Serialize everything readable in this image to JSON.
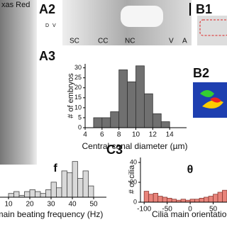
{
  "labels": {
    "texas": "xas Red",
    "a2": "A2",
    "b1": "B1",
    "a3": "A3",
    "b2": "B2",
    "c3": "C3",
    "a2_regions": [
      "SC",
      "CC",
      "NC",
      "V",
      "A"
    ],
    "a2_axis": [
      "D",
      "V"
    ]
  },
  "chart_data": [
    {
      "type": "histogram",
      "ylabel": "# of embryos",
      "xlabel": "Central canal diameter (µm)",
      "bins": [
        5,
        6,
        7,
        8,
        9,
        10,
        11,
        12,
        13,
        14
      ],
      "values": [
        5,
        5,
        8,
        29,
        23,
        31,
        17,
        7,
        3
      ],
      "color": "#707070",
      "xlim": [
        4,
        16
      ],
      "ylim": [
        0,
        32
      ],
      "xticks": [
        4,
        6,
        8,
        10,
        12,
        14
      ],
      "yticks": [
        0,
        5,
        10,
        15,
        20,
        25,
        30
      ]
    },
    {
      "type": "histogram",
      "title": "f",
      "xlabel": "main beating frequency (Hz)",
      "bins": [
        10,
        12.5,
        15,
        17.5,
        20,
        22.5,
        25,
        27.5,
        30,
        32.5,
        35,
        37.5,
        40,
        42.5,
        45,
        47.5,
        50
      ],
      "values": [
        2,
        3,
        1,
        3,
        4,
        3,
        2,
        4,
        8,
        5,
        14,
        13,
        19,
        10,
        14,
        6
      ],
      "color": "#d9d9d9",
      "xlim": [
        6,
        56
      ],
      "ylim": [
        0,
        20
      ],
      "xticks": [
        10,
        20,
        30,
        40,
        50
      ]
    },
    {
      "type": "histogram",
      "title": "θ",
      "ylabel": "# of cilia",
      "xlabel": "Cilia main orientation (°",
      "bins": [
        -100,
        -90,
        -80,
        -70,
        -60,
        -50,
        -40,
        -30,
        -20,
        -10,
        0,
        10,
        20,
        30,
        40,
        50,
        60,
        70,
        80
      ],
      "values": [
        11,
        8,
        9,
        6,
        5,
        4,
        3,
        2,
        3,
        2,
        3,
        3,
        4,
        5,
        6,
        8,
        10,
        12
      ],
      "color": "#e8837a",
      "xlim": [
        -108,
        80
      ],
      "ylim": [
        0,
        45
      ],
      "xticks": [
        -100,
        -50,
        0,
        50
      ],
      "yticks": [
        0,
        20,
        40
      ]
    }
  ]
}
